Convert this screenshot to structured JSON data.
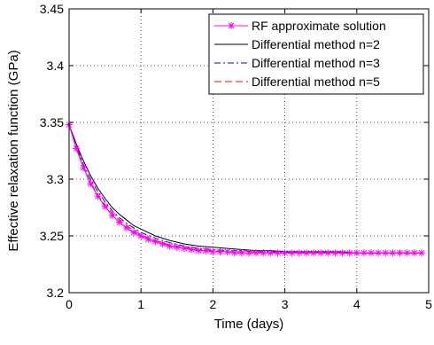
{
  "chart_data": {
    "type": "line",
    "xlabel": "Time (days)",
    "ylabel": "Effective relaxation function (GPa)",
    "xlim": [
      0,
      5
    ],
    "ylim": [
      3.2,
      3.45
    ],
    "xticks": [
      "0",
      "1",
      "2",
      "3",
      "4",
      "5"
    ],
    "yticks": [
      "3.2",
      "3.25",
      "3.3",
      "3.35",
      "3.4",
      "3.45"
    ],
    "grid": true,
    "legend_position": "top-right",
    "series": [
      {
        "name": "RF approximate solution",
        "color": "#ff00ff",
        "style": "solid",
        "marker": "asterisk",
        "x": [
          0,
          0.1,
          0.2,
          0.3,
          0.4,
          0.5,
          0.6,
          0.7,
          0.8,
          0.9,
          1.0,
          1.1,
          1.2,
          1.3,
          1.4,
          1.5,
          1.6,
          1.7,
          1.8,
          1.9,
          2.0,
          2.1,
          2.2,
          2.3,
          2.4,
          2.5,
          2.6,
          2.7,
          2.8,
          2.9,
          3.0,
          3.1,
          3.2,
          3.3,
          3.4,
          3.5,
          3.6,
          3.7,
          3.8,
          3.9,
          4.0,
          4.1,
          4.2,
          4.3,
          4.4,
          4.5,
          4.6,
          4.7,
          4.8,
          4.9
        ],
        "y": [
          3.348,
          3.327,
          3.31,
          3.296,
          3.285,
          3.276,
          3.268,
          3.262,
          3.257,
          3.253,
          3.25,
          3.247,
          3.245,
          3.243,
          3.241,
          3.24,
          3.239,
          3.238,
          3.237,
          3.237,
          3.236,
          3.236,
          3.236,
          3.235,
          3.235,
          3.235,
          3.235,
          3.235,
          3.235,
          3.235,
          3.235,
          3.235,
          3.235,
          3.235,
          3.235,
          3.235,
          3.235,
          3.235,
          3.235,
          3.235,
          3.235,
          3.235,
          3.235,
          3.235,
          3.235,
          3.235,
          3.235,
          3.235,
          3.235,
          3.235
        ]
      },
      {
        "name": "Differential method n=2",
        "color": "#000000",
        "style": "solid",
        "marker": "none",
        "x": [
          0,
          0.1,
          0.2,
          0.3,
          0.4,
          0.5,
          0.6,
          0.7,
          0.8,
          0.9,
          1.0,
          1.2,
          1.4,
          1.6,
          1.8,
          2.0,
          2.2,
          2.4,
          2.6,
          2.8,
          3.0,
          3.2,
          3.4,
          3.6,
          3.8,
          4.0,
          4.2,
          4.4,
          4.6,
          4.8,
          4.9
        ],
        "y": [
          3.348,
          3.331,
          3.316,
          3.303,
          3.292,
          3.283,
          3.275,
          3.269,
          3.264,
          3.259,
          3.256,
          3.25,
          3.246,
          3.243,
          3.241,
          3.24,
          3.239,
          3.238,
          3.237,
          3.237,
          3.236,
          3.236,
          3.236,
          3.236,
          3.236,
          3.235,
          3.235,
          3.235,
          3.235,
          3.235,
          3.235
        ]
      },
      {
        "name": "Differential method n=3",
        "color": "#0000cc",
        "style": "dashdot",
        "marker": "none",
        "x": [
          0,
          0.1,
          0.2,
          0.3,
          0.4,
          0.5,
          0.6,
          0.7,
          0.8,
          0.9,
          1.0,
          1.2,
          1.4,
          1.6,
          1.8,
          2.0,
          2.2,
          2.4,
          2.6,
          2.8,
          3.0,
          3.2,
          3.4,
          3.6,
          3.8,
          4.0,
          4.2,
          4.4,
          4.6,
          4.8,
          4.9
        ],
        "y": [
          3.348,
          3.329,
          3.313,
          3.3,
          3.289,
          3.28,
          3.272,
          3.266,
          3.261,
          3.257,
          3.253,
          3.248,
          3.244,
          3.241,
          3.239,
          3.238,
          3.237,
          3.237,
          3.236,
          3.236,
          3.236,
          3.235,
          3.235,
          3.235,
          3.235,
          3.235,
          3.235,
          3.235,
          3.235,
          3.235,
          3.235
        ]
      },
      {
        "name": "Differential method n=5",
        "color": "#ff0000",
        "style": "dashed",
        "marker": "none",
        "x": [
          0,
          0.1,
          0.2,
          0.3,
          0.4,
          0.5,
          0.6,
          0.7,
          0.8,
          0.9,
          1.0,
          1.2,
          1.4,
          1.6,
          1.8,
          2.0,
          2.2,
          2.4,
          2.6,
          2.8,
          3.0,
          3.2,
          3.4,
          3.6,
          3.8,
          4.0,
          4.2,
          4.4,
          4.6,
          4.8,
          4.9
        ],
        "y": [
          3.348,
          3.328,
          3.311,
          3.297,
          3.286,
          3.277,
          3.27,
          3.264,
          3.259,
          3.255,
          3.251,
          3.246,
          3.242,
          3.24,
          3.238,
          3.237,
          3.236,
          3.236,
          3.236,
          3.235,
          3.235,
          3.235,
          3.235,
          3.235,
          3.235,
          3.235,
          3.235,
          3.235,
          3.235,
          3.235,
          3.235
        ]
      }
    ]
  }
}
